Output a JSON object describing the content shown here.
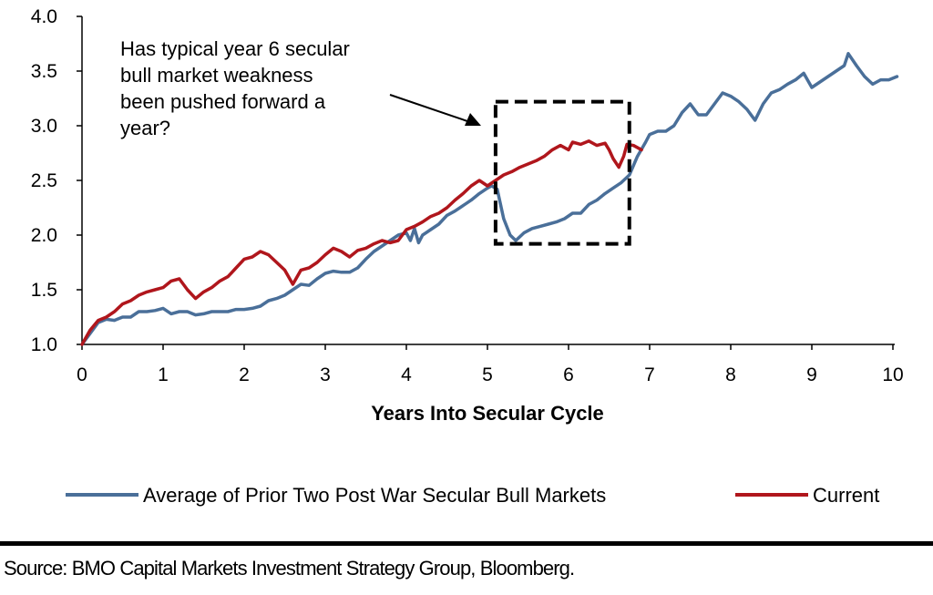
{
  "chart_data": {
    "type": "line",
    "xlabel": "Years Into Secular Cycle",
    "ylabel": "",
    "xlim": [
      0,
      10
    ],
    "ylim": [
      1.0,
      4.0
    ],
    "x_ticks": [
      "0",
      "1",
      "2",
      "3",
      "4",
      "5",
      "6",
      "7",
      "8",
      "9",
      "10"
    ],
    "y_ticks": [
      "1.0",
      "1.5",
      "2.0",
      "2.5",
      "3.0",
      "3.5",
      "4.0"
    ],
    "grid": false,
    "legend_position": "bottom",
    "annotation": "Has typical year 6 secular bull market weakness been pushed forward a year?",
    "annotation_lines": [
      "Has typical year 6 secular",
      "bull market weakness",
      "been pushed forward a",
      "year?"
    ],
    "highlight_box": {
      "x": [
        5.1,
        6.75
      ],
      "y": [
        1.92,
        3.22
      ]
    },
    "series": [
      {
        "name": "Average of Prior Two Post War Secular Bull Markets",
        "color": "#4a6f99",
        "points": [
          [
            0,
            1.0
          ],
          [
            0.1,
            1.1
          ],
          [
            0.2,
            1.2
          ],
          [
            0.3,
            1.23
          ],
          [
            0.4,
            1.22
          ],
          [
            0.5,
            1.25
          ],
          [
            0.6,
            1.25
          ],
          [
            0.7,
            1.3
          ],
          [
            0.8,
            1.3
          ],
          [
            0.9,
            1.31
          ],
          [
            1.0,
            1.33
          ],
          [
            1.1,
            1.28
          ],
          [
            1.2,
            1.3
          ],
          [
            1.3,
            1.3
          ],
          [
            1.4,
            1.27
          ],
          [
            1.5,
            1.28
          ],
          [
            1.6,
            1.3
          ],
          [
            1.7,
            1.3
          ],
          [
            1.8,
            1.3
          ],
          [
            1.9,
            1.32
          ],
          [
            2.0,
            1.32
          ],
          [
            2.1,
            1.33
          ],
          [
            2.2,
            1.35
          ],
          [
            2.3,
            1.4
          ],
          [
            2.4,
            1.42
          ],
          [
            2.5,
            1.45
          ],
          [
            2.6,
            1.5
          ],
          [
            2.7,
            1.55
          ],
          [
            2.8,
            1.54
          ],
          [
            2.9,
            1.6
          ],
          [
            3.0,
            1.65
          ],
          [
            3.1,
            1.67
          ],
          [
            3.2,
            1.66
          ],
          [
            3.3,
            1.66
          ],
          [
            3.4,
            1.7
          ],
          [
            3.5,
            1.78
          ],
          [
            3.6,
            1.85
          ],
          [
            3.7,
            1.9
          ],
          [
            3.8,
            1.95
          ],
          [
            3.9,
            2.0
          ],
          [
            4.0,
            2.02
          ],
          [
            4.05,
            1.95
          ],
          [
            4.1,
            2.06
          ],
          [
            4.15,
            1.93
          ],
          [
            4.2,
            2.0
          ],
          [
            4.3,
            2.05
          ],
          [
            4.4,
            2.1
          ],
          [
            4.5,
            2.18
          ],
          [
            4.6,
            2.22
          ],
          [
            4.7,
            2.27
          ],
          [
            4.8,
            2.32
          ],
          [
            4.9,
            2.38
          ],
          [
            5.0,
            2.43
          ],
          [
            5.05,
            2.45
          ],
          [
            5.12,
            2.42
          ],
          [
            5.2,
            2.15
          ],
          [
            5.28,
            2.0
          ],
          [
            5.35,
            1.95
          ],
          [
            5.45,
            2.02
          ],
          [
            5.55,
            2.06
          ],
          [
            5.65,
            2.08
          ],
          [
            5.75,
            2.1
          ],
          [
            5.85,
            2.12
          ],
          [
            5.95,
            2.15
          ],
          [
            6.05,
            2.2
          ],
          [
            6.15,
            2.2
          ],
          [
            6.25,
            2.28
          ],
          [
            6.35,
            2.32
          ],
          [
            6.45,
            2.38
          ],
          [
            6.55,
            2.43
          ],
          [
            6.65,
            2.48
          ],
          [
            6.75,
            2.55
          ],
          [
            6.85,
            2.72
          ],
          [
            6.95,
            2.85
          ],
          [
            7.0,
            2.92
          ],
          [
            7.1,
            2.95
          ],
          [
            7.2,
            2.95
          ],
          [
            7.3,
            3.0
          ],
          [
            7.4,
            3.12
          ],
          [
            7.5,
            3.2
          ],
          [
            7.6,
            3.1
          ],
          [
            7.7,
            3.1
          ],
          [
            7.8,
            3.2
          ],
          [
            7.9,
            3.3
          ],
          [
            8.0,
            3.27
          ],
          [
            8.1,
            3.22
          ],
          [
            8.2,
            3.15
          ],
          [
            8.3,
            3.05
          ],
          [
            8.4,
            3.2
          ],
          [
            8.5,
            3.3
          ],
          [
            8.6,
            3.33
          ],
          [
            8.7,
            3.38
          ],
          [
            8.8,
            3.42
          ],
          [
            8.9,
            3.48
          ],
          [
            9.0,
            3.35
          ],
          [
            9.1,
            3.4
          ],
          [
            9.2,
            3.45
          ],
          [
            9.3,
            3.5
          ],
          [
            9.4,
            3.55
          ],
          [
            9.45,
            3.66
          ],
          [
            9.55,
            3.55
          ],
          [
            9.65,
            3.45
          ],
          [
            9.75,
            3.38
          ],
          [
            9.85,
            3.42
          ],
          [
            9.95,
            3.42
          ],
          [
            10.05,
            3.45
          ]
        ]
      },
      {
        "name": "Current",
        "color": "#b0161c",
        "points": [
          [
            0,
            1.0
          ],
          [
            0.1,
            1.13
          ],
          [
            0.2,
            1.22
          ],
          [
            0.3,
            1.25
          ],
          [
            0.4,
            1.3
          ],
          [
            0.5,
            1.37
          ],
          [
            0.6,
            1.4
          ],
          [
            0.7,
            1.45
          ],
          [
            0.8,
            1.48
          ],
          [
            0.9,
            1.5
          ],
          [
            1.0,
            1.52
          ],
          [
            1.1,
            1.58
          ],
          [
            1.2,
            1.6
          ],
          [
            1.3,
            1.5
          ],
          [
            1.4,
            1.42
          ],
          [
            1.5,
            1.48
          ],
          [
            1.6,
            1.52
          ],
          [
            1.7,
            1.58
          ],
          [
            1.8,
            1.62
          ],
          [
            1.9,
            1.7
          ],
          [
            2.0,
            1.78
          ],
          [
            2.1,
            1.8
          ],
          [
            2.2,
            1.85
          ],
          [
            2.3,
            1.82
          ],
          [
            2.4,
            1.75
          ],
          [
            2.5,
            1.68
          ],
          [
            2.6,
            1.55
          ],
          [
            2.7,
            1.68
          ],
          [
            2.8,
            1.7
          ],
          [
            2.9,
            1.75
          ],
          [
            3.0,
            1.82
          ],
          [
            3.1,
            1.88
          ],
          [
            3.2,
            1.85
          ],
          [
            3.3,
            1.8
          ],
          [
            3.4,
            1.86
          ],
          [
            3.5,
            1.88
          ],
          [
            3.6,
            1.92
          ],
          [
            3.7,
            1.95
          ],
          [
            3.8,
            1.93
          ],
          [
            3.9,
            1.95
          ],
          [
            4.0,
            2.05
          ],
          [
            4.1,
            2.08
          ],
          [
            4.2,
            2.12
          ],
          [
            4.3,
            2.17
          ],
          [
            4.4,
            2.2
          ],
          [
            4.5,
            2.25
          ],
          [
            4.6,
            2.32
          ],
          [
            4.7,
            2.38
          ],
          [
            4.8,
            2.45
          ],
          [
            4.9,
            2.5
          ],
          [
            5.0,
            2.45
          ],
          [
            5.1,
            2.5
          ],
          [
            5.2,
            2.55
          ],
          [
            5.3,
            2.58
          ],
          [
            5.4,
            2.62
          ],
          [
            5.5,
            2.65
          ],
          [
            5.6,
            2.68
          ],
          [
            5.7,
            2.72
          ],
          [
            5.8,
            2.78
          ],
          [
            5.9,
            2.82
          ],
          [
            6.0,
            2.78
          ],
          [
            6.05,
            2.85
          ],
          [
            6.15,
            2.83
          ],
          [
            6.25,
            2.86
          ],
          [
            6.35,
            2.82
          ],
          [
            6.45,
            2.84
          ],
          [
            6.5,
            2.78
          ],
          [
            6.55,
            2.7
          ],
          [
            6.62,
            2.62
          ],
          [
            6.68,
            2.72
          ],
          [
            6.72,
            2.83
          ],
          [
            6.8,
            2.82
          ],
          [
            6.9,
            2.78
          ]
        ]
      }
    ]
  },
  "source_text": "Source: BMO Capital Markets Investment Strategy Group, Bloomberg."
}
